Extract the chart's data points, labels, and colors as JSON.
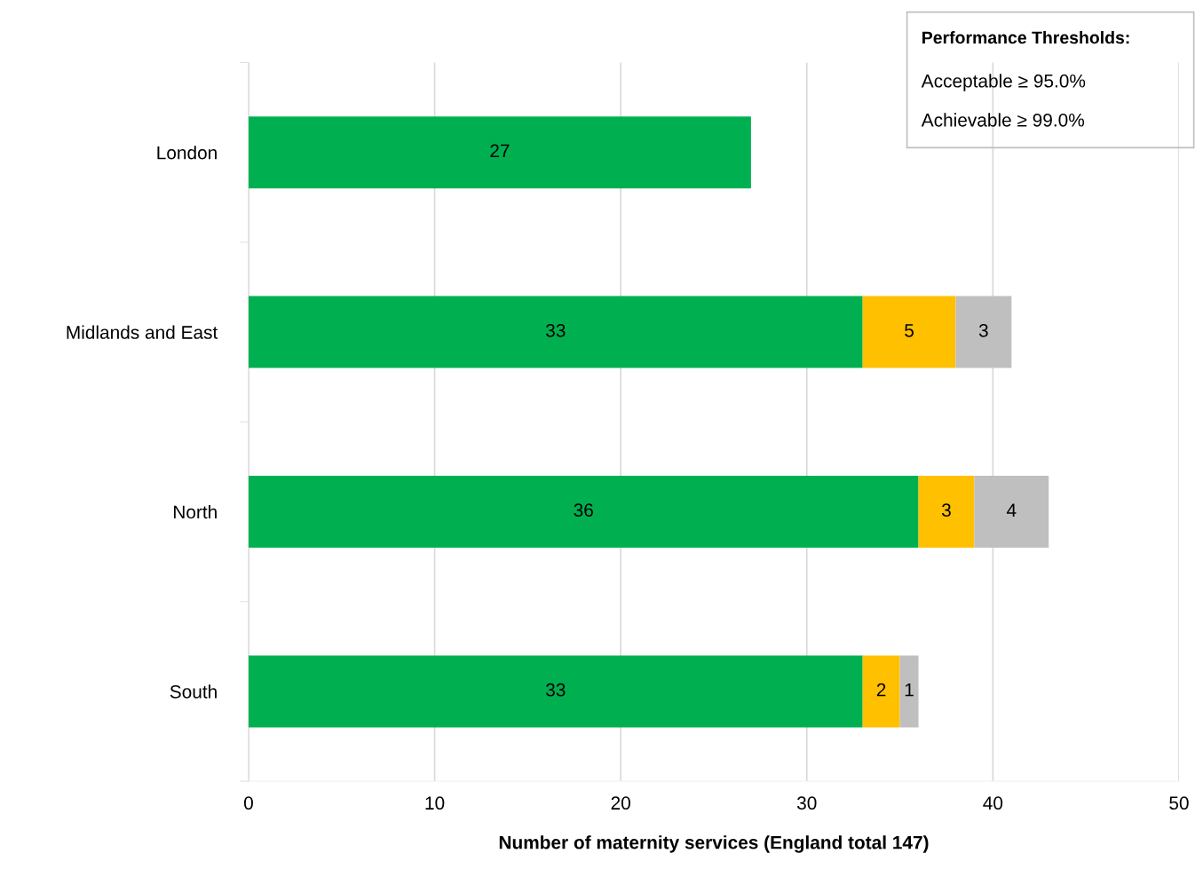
{
  "chart_data": {
    "type": "bar",
    "orientation": "horizontal",
    "stacked": true,
    "categories": [
      "London",
      "Midlands and East",
      "North",
      "South"
    ],
    "series": [
      {
        "color": "#00b050",
        "values": [
          27,
          33,
          36,
          33
        ]
      },
      {
        "color": "#ffc000",
        "values": [
          null,
          5,
          3,
          2
        ]
      },
      {
        "color": "#bfbfbf",
        "values": [
          null,
          3,
          4,
          1
        ]
      }
    ],
    "xlabel": "Number of maternity services (England total 147)",
    "xlim": [
      0,
      50
    ],
    "xticks": [
      0,
      10,
      20,
      30,
      40,
      50
    ],
    "grid": "x",
    "data_labels": true,
    "annotations": [
      "Performance Thresholds:",
      "Acceptable ≥ 95.0%",
      "Achievable ≥ 99.0%"
    ]
  }
}
